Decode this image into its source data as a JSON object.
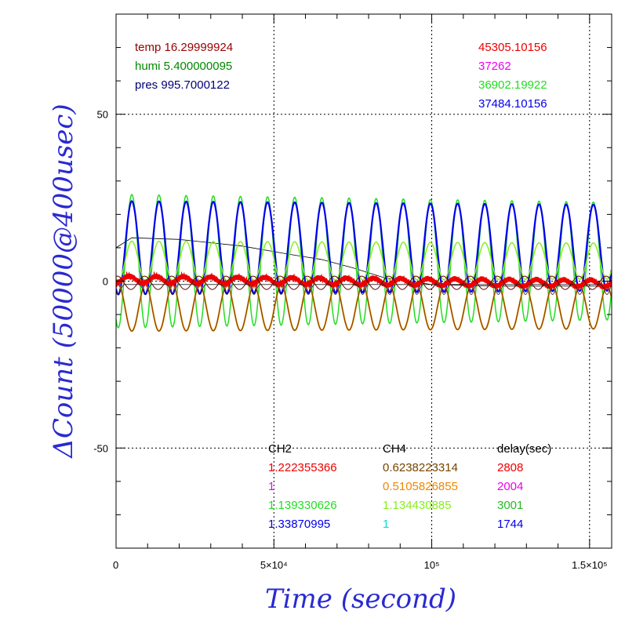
{
  "chart_data": {
    "type": "line",
    "xlabel": "Time (second)",
    "ylabel": "ΔCount (50000@400usec)",
    "xlim": [
      0,
      157000
    ],
    "ylim": [
      -80,
      80
    ],
    "x_ticks": [
      {
        "value": 0,
        "label": "0"
      },
      {
        "value": 50000,
        "label": "5×10⁴"
      },
      {
        "value": 100000,
        "label": "10⁵"
      },
      {
        "value": 150000,
        "label": "1.5×10⁵"
      }
    ],
    "y_ticks": [
      {
        "value": 50,
        "label": "50"
      },
      {
        "value": 0,
        "label": "0"
      },
      {
        "value": -50,
        "label": "-50"
      }
    ],
    "grid": "dotted",
    "period_seconds": 8600,
    "series": [
      {
        "key": "green",
        "color": "#22dd22",
        "mean": 6,
        "amplitude": 20,
        "amp_decay": 0.12,
        "phase": 5000,
        "width": 1.5
      },
      {
        "key": "blue",
        "color": "#0000ee",
        "mean": 10,
        "amplitude": 14,
        "amp_decay": 0.08,
        "phase": 5000,
        "width": 2.2
      },
      {
        "key": "lightgreen",
        "color": "#88ee22",
        "mean": 6,
        "amplitude": 6,
        "amp_decay": 0.1,
        "phase": 5000,
        "width": 1.5
      },
      {
        "key": "orange",
        "color": "#ee8800",
        "mean": -8,
        "amplitude": 7,
        "amp_decay": 0.1,
        "phase": 9300,
        "width": 2
      },
      {
        "key": "brown",
        "color": "#774400",
        "mean": -8,
        "amplitude": 7,
        "amp_decay": 0.1,
        "phase": 9300,
        "width": 1
      },
      {
        "key": "red",
        "color": "#ee0000",
        "mean": 0.5,
        "amplitude": 1,
        "amp_decay": 0,
        "phase": 2000,
        "width": 2.5
      },
      {
        "key": "darkred",
        "color": "#660000",
        "mean": -0.5,
        "amplitude": 2,
        "amp_decay": 0,
        "phase": 9000,
        "width": 1
      },
      {
        "key": "black_dip",
        "color": "#222222",
        "mean": -1,
        "amplitude": 3,
        "amp_decay": 0,
        "phase": 9300,
        "width": 0.8
      }
    ],
    "drift": {
      "color": "#000000",
      "points": [
        [
          0,
          10
        ],
        [
          5000,
          13
        ],
        [
          20000,
          12.5
        ],
        [
          40000,
          10.5
        ],
        [
          55000,
          8
        ],
        [
          65000,
          6.5
        ],
        [
          75000,
          4
        ],
        [
          85000,
          1
        ],
        [
          100000,
          -1
        ],
        [
          120000,
          -1.5
        ],
        [
          157000,
          -1.5
        ]
      ]
    }
  },
  "legend_top_left": [
    {
      "text": "temp 16.29999924",
      "color": "#990000"
    },
    {
      "text": "humi 5.400000095",
      "color": "#008800"
    },
    {
      "text": "pres 995.7000122",
      "color": "#000077"
    }
  ],
  "legend_top_right": [
    {
      "text": "45305.10156",
      "color": "#ee0000"
    },
    {
      "text": "37262",
      "color": "#ee00ee"
    },
    {
      "text": "36902.19922",
      "color": "#22dd22"
    },
    {
      "text": "37484.10156",
      "color": "#0000ee"
    }
  ],
  "table": {
    "headers": [
      "CH2",
      "CH4",
      "delay(sec)"
    ],
    "rows": [
      {
        "ch2": "1.222355366",
        "ch2_color": "#ee0000",
        "ch4": "0.6238223314",
        "ch4_color": "#774400",
        "delay": "2808",
        "delay_color": "#ee0000"
      },
      {
        "ch2": "1",
        "ch2_color": "#ee00ee",
        "ch4": "0.5105826855",
        "ch4_color": "#ee8800",
        "delay": "2004",
        "delay_color": "#ee00ee"
      },
      {
        "ch2": "1.139330626",
        "ch2_color": "#22dd22",
        "ch4": "1.134430885",
        "ch4_color": "#88ee22",
        "delay": "3001",
        "delay_color": "#22bb22"
      },
      {
        "ch2": "1.33870995",
        "ch2_color": "#0000ee",
        "ch4": "1",
        "ch4_color": "#00dddd",
        "delay": "1744",
        "delay_color": "#0000ee"
      }
    ]
  }
}
